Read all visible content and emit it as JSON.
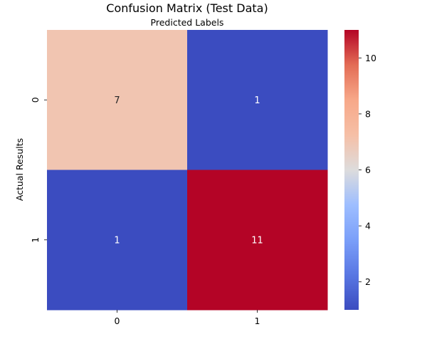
{
  "chart_data": {
    "type": "heatmap",
    "title": "Confusion Matrix (Test Data)",
    "xlabel": "Predicted Labels",
    "ylabel": "Actual Results",
    "x_categories": [
      "0",
      "1"
    ],
    "y_categories": [
      "0",
      "1"
    ],
    "values": [
      [
        7,
        1
      ],
      [
        1,
        11
      ]
    ],
    "colorbar": {
      "range": [
        1,
        11
      ],
      "ticks": [
        2,
        4,
        6,
        8,
        10
      ],
      "colormap": "coolwarm",
      "placement": "right"
    },
    "x_axis_label_position": "top",
    "grid": false,
    "legend": "none"
  }
}
